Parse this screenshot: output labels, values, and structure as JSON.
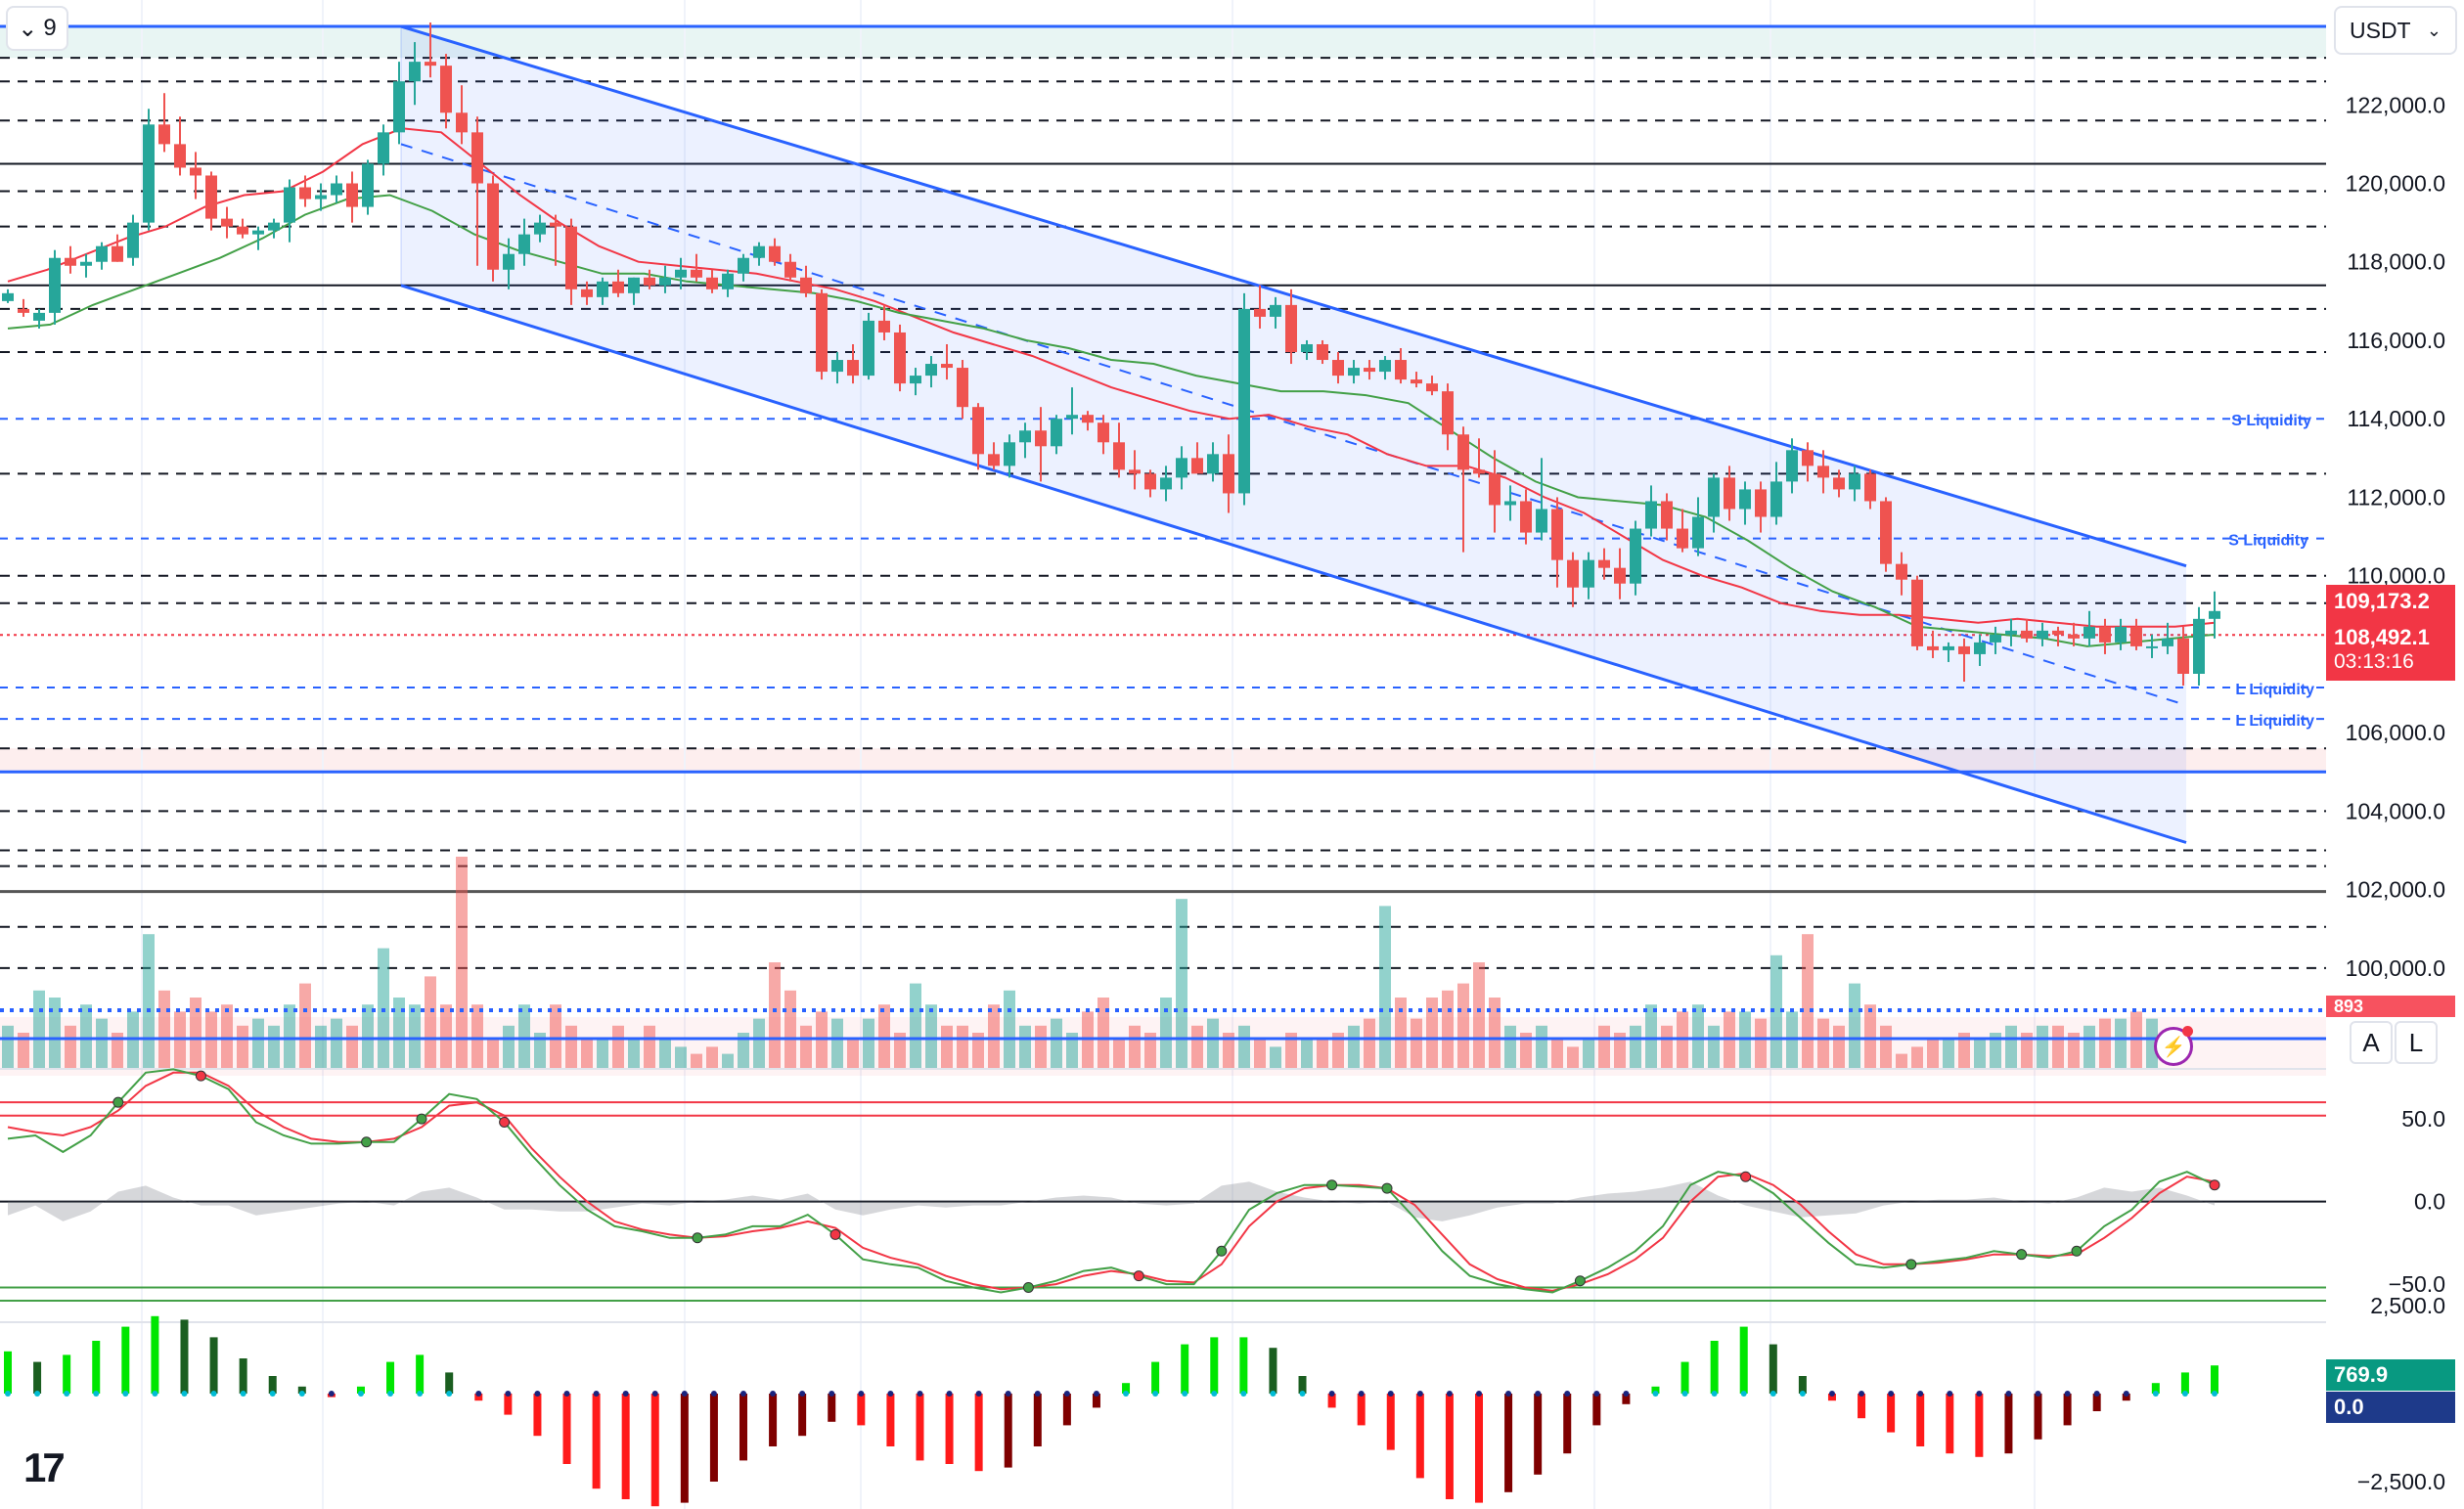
{
  "toolbar": {
    "interval_count": "9",
    "currency": "USDT"
  },
  "scale_buttons": {
    "auto": "A",
    "log": "L"
  },
  "logo": "17",
  "price_tags": {
    "last_price": "109,173.2",
    "current_price": "108,492.1",
    "countdown": "03:13:16",
    "volume": "893",
    "histogram_value": "769.9",
    "histogram_zero": "0.0"
  },
  "annotations": {
    "s_liquidity_1": "S Liquidity",
    "s_liquidity_2": "S Liquidity",
    "l_liquidity_1": "L Liquidity",
    "l_liquidity_2": "L Liquidity"
  },
  "colors": {
    "up": "#26a69a",
    "down": "#ef5350",
    "channel": "#2962ff",
    "ema_red": "#f23645",
    "ema_green": "#43a047"
  },
  "chart_data": {
    "type": "candlestick",
    "symbol_quote": "USDT",
    "price_axis": {
      "ticks": [
        "122,000.0",
        "120,000.0",
        "118,000.0",
        "116,000.0",
        "114,000.0",
        "112,000.0",
        "110,000.0",
        "106,000.0",
        "104,000.0",
        "102,000.0",
        "100,000.0"
      ],
      "range": [
        99000,
        124200
      ]
    },
    "stoch_axis": {
      "ticks": [
        "50.0",
        "0.0",
        "−50.0"
      ],
      "range": [
        -60,
        82
      ]
    },
    "macd_axis": {
      "ticks": [
        "2,500.0",
        "−2,500.0"
      ],
      "range": [
        -3000,
        3000
      ]
    },
    "horizontal_levels": {
      "solid_black": [
        120500,
        117400,
        101950
      ],
      "blue_solid": [
        124000,
        105000
      ],
      "s_liquidity": [
        114000,
        110950
      ],
      "l_liquidity": [
        107150,
        106350
      ],
      "dashed_black": [
        123200,
        122600,
        121600,
        119800,
        118900,
        116800,
        115700,
        112600,
        110000,
        109300,
        105600,
        104000,
        103000,
        102600,
        101050,
        100000
      ]
    },
    "channel": {
      "upper": [
        [
          0,
          124000
        ],
        [
          136,
          110250
        ]
      ],
      "lower": [
        [
          0,
          117400
        ],
        [
          136,
          103200
        ]
      ],
      "mid": [
        [
          0,
          121000
        ],
        [
          136,
          106700
        ]
      ]
    },
    "candles": [
      [
        117000,
        117300,
        116950,
        117200
      ],
      [
        116800,
        117050,
        116600,
        116700
      ],
      [
        116500,
        116800,
        116300,
        116700
      ],
      [
        116700,
        118300,
        116400,
        118100
      ],
      [
        118100,
        118400,
        117700,
        117900
      ],
      [
        117900,
        118200,
        117600,
        118000
      ],
      [
        118000,
        118500,
        117800,
        118400
      ],
      [
        118400,
        118700,
        118000,
        118000
      ],
      [
        118100,
        119200,
        117900,
        119000
      ],
      [
        119000,
        121900,
        118800,
        121500
      ],
      [
        121500,
        122300,
        120800,
        121000
      ],
      [
        121000,
        121700,
        120200,
        120400
      ],
      [
        120400,
        120800,
        119600,
        120200
      ],
      [
        120200,
        120300,
        118800,
        119100
      ],
      [
        119100,
        119400,
        118600,
        118900
      ],
      [
        118900,
        119100,
        118600,
        118700
      ],
      [
        118700,
        118900,
        118300,
        118800
      ],
      [
        118800,
        119100,
        118600,
        119000
      ],
      [
        119000,
        120100,
        118500,
        119900
      ],
      [
        119900,
        120200,
        119400,
        119600
      ],
      [
        119600,
        120000,
        119300,
        119700
      ],
      [
        119700,
        120200,
        119500,
        120000
      ],
      [
        120000,
        120300,
        119000,
        119400
      ],
      [
        119400,
        120600,
        119200,
        120500
      ],
      [
        120500,
        121500,
        120200,
        121300
      ],
      [
        121300,
        123100,
        121000,
        122600
      ],
      [
        122600,
        123600,
        122000,
        123100
      ],
      [
        123100,
        124100,
        122700,
        123000
      ],
      [
        123000,
        123300,
        121400,
        121800
      ],
      [
        121800,
        122500,
        121000,
        121300
      ],
      [
        121300,
        121700,
        117900,
        120000
      ],
      [
        120000,
        120200,
        117500,
        117800
      ],
      [
        117800,
        118600,
        117300,
        118200
      ],
      [
        118200,
        119100,
        117900,
        118700
      ],
      [
        118700,
        119200,
        118500,
        119000
      ],
      [
        119000,
        119200,
        117900,
        118900
      ],
      [
        118900,
        119100,
        116900,
        117300
      ],
      [
        117300,
        117500,
        116900,
        117100
      ],
      [
        117100,
        117600,
        116900,
        117500
      ],
      [
        117500,
        117800,
        117100,
        117200
      ],
      [
        117200,
        117600,
        116900,
        117600
      ],
      [
        117600,
        117800,
        117300,
        117400
      ],
      [
        117400,
        117900,
        117200,
        117600
      ],
      [
        117600,
        118100,
        117300,
        117800
      ],
      [
        117800,
        118200,
        117500,
        117600
      ],
      [
        117600,
        117800,
        117200,
        117300
      ],
      [
        117300,
        117800,
        117100,
        117700
      ],
      [
        117700,
        118200,
        117500,
        118100
      ],
      [
        118100,
        118500,
        117900,
        118400
      ],
      [
        118400,
        118600,
        117900,
        118000
      ],
      [
        118000,
        118200,
        117500,
        117600
      ],
      [
        117600,
        117900,
        117100,
        117200
      ],
      [
        117200,
        117300,
        115000,
        115200
      ],
      [
        115200,
        115700,
        114900,
        115500
      ],
      [
        115500,
        115900,
        114900,
        115100
      ],
      [
        115100,
        116700,
        115000,
        116500
      ],
      [
        116500,
        116900,
        116000,
        116200
      ],
      [
        116200,
        116400,
        114700,
        114900
      ],
      [
        114900,
        115300,
        114600,
        115100
      ],
      [
        115100,
        115600,
        114800,
        115400
      ],
      [
        115400,
        115900,
        115000,
        115300
      ],
      [
        115300,
        115500,
        114000,
        114300
      ],
      [
        114300,
        114400,
        112700,
        113100
      ],
      [
        113100,
        113400,
        112700,
        112800
      ],
      [
        112800,
        113600,
        112500,
        113400
      ],
      [
        113400,
        113900,
        113000,
        113700
      ],
      [
        113700,
        114300,
        112400,
        113300
      ],
      [
        113300,
        114100,
        113100,
        114000
      ],
      [
        114000,
        114800,
        113600,
        114100
      ],
      [
        114100,
        114200,
        113700,
        113900
      ],
      [
        113900,
        114100,
        113100,
        113400
      ],
      [
        113400,
        113900,
        112500,
        112700
      ],
      [
        112700,
        113200,
        112200,
        112600
      ],
      [
        112600,
        112700,
        112000,
        112200
      ],
      [
        112200,
        112800,
        111900,
        112500
      ],
      [
        112500,
        113300,
        112200,
        113000
      ],
      [
        113000,
        113400,
        112700,
        112600
      ],
      [
        112600,
        113400,
        112400,
        113100
      ],
      [
        113100,
        113600,
        111600,
        112100
      ],
      [
        112100,
        117200,
        111800,
        116800
      ],
      [
        116800,
        117400,
        116300,
        116600
      ],
      [
        116600,
        117100,
        116300,
        116900
      ],
      [
        116900,
        117300,
        115400,
        115700
      ],
      [
        115700,
        116000,
        115500,
        115900
      ],
      [
        115900,
        116000,
        115400,
        115500
      ],
      [
        115500,
        115700,
        114900,
        115100
      ],
      [
        115100,
        115500,
        114900,
        115300
      ],
      [
        115300,
        115500,
        115000,
        115200
      ],
      [
        115200,
        115600,
        115000,
        115500
      ],
      [
        115500,
        115800,
        114900,
        115000
      ],
      [
        115000,
        115200,
        114800,
        114900
      ],
      [
        114900,
        115100,
        114600,
        114700
      ],
      [
        114700,
        114900,
        113200,
        113600
      ],
      [
        113600,
        113800,
        110600,
        112700
      ],
      [
        112700,
        113500,
        112500,
        112600
      ],
      [
        112600,
        113200,
        111100,
        111800
      ],
      [
        111800,
        112300,
        111400,
        111900
      ],
      [
        111900,
        112200,
        110800,
        111100
      ],
      [
        111100,
        113000,
        110900,
        111700
      ],
      [
        111700,
        112000,
        109700,
        110400
      ],
      [
        110400,
        110600,
        109200,
        109700
      ],
      [
        109700,
        110600,
        109400,
        110400
      ],
      [
        110400,
        110700,
        109900,
        110200
      ],
      [
        110200,
        110700,
        109400,
        109800
      ],
      [
        109800,
        111400,
        109500,
        111200
      ],
      [
        111200,
        112300,
        111000,
        111900
      ],
      [
        111900,
        112100,
        110900,
        111200
      ],
      [
        111200,
        111700,
        110600,
        110700
      ],
      [
        110700,
        112000,
        110500,
        111500
      ],
      [
        111500,
        112600,
        111100,
        112500
      ],
      [
        112500,
        112800,
        111400,
        111700
      ],
      [
        111700,
        112400,
        111300,
        112200
      ],
      [
        112200,
        112400,
        111100,
        111500
      ],
      [
        111500,
        112900,
        111300,
        112400
      ],
      [
        112400,
        113500,
        112100,
        113200
      ],
      [
        113200,
        113400,
        112400,
        112800
      ],
      [
        112800,
        113200,
        112100,
        112500
      ],
      [
        112500,
        112700,
        112000,
        112200
      ],
      [
        112200,
        112800,
        111900,
        112600
      ],
      [
        112600,
        112700,
        111700,
        111900
      ],
      [
        111900,
        112000,
        110100,
        110300
      ],
      [
        110300,
        110600,
        109500,
        109900
      ],
      [
        109900,
        110000,
        108100,
        108200
      ],
      [
        108200,
        108600,
        107900,
        108100
      ],
      [
        108100,
        108300,
        107800,
        108200
      ],
      [
        108200,
        108400,
        107300,
        108000
      ],
      [
        108000,
        108500,
        107700,
        108300
      ],
      [
        108300,
        108700,
        108000,
        108500
      ],
      [
        108500,
        108900,
        108200,
        108600
      ],
      [
        108600,
        108900,
        108300,
        108400
      ],
      [
        108400,
        108800,
        108200,
        108600
      ],
      [
        108600,
        108700,
        108200,
        108500
      ],
      [
        108500,
        108800,
        108200,
        108400
      ],
      [
        108400,
        109100,
        108200,
        108700
      ],
      [
        108700,
        108900,
        108000,
        108300
      ],
      [
        108300,
        108900,
        108100,
        108700
      ],
      [
        108700,
        108900,
        108100,
        108200
      ],
      [
        108200,
        108500,
        107900,
        108200
      ],
      [
        108200,
        108800,
        108000,
        108400
      ],
      [
        108400,
        108700,
        107200,
        107500
      ],
      [
        107500,
        109200,
        107200,
        108900
      ],
      [
        108900,
        109600,
        108400,
        109100
      ]
    ],
    "extra_candles_note": "",
    "ema_red": [
      117500,
      117800,
      118200,
      118600,
      118900,
      119400,
      119700,
      119800,
      120300,
      121000,
      121400,
      121300,
      120500,
      119700,
      119000,
      118400,
      118000,
      117900,
      117800,
      117700,
      117500,
      117300,
      117000,
      116600,
      116200,
      115900,
      115600,
      115200,
      114800,
      114500,
      114200,
      114000,
      114100,
      113800,
      113600,
      113100,
      112800,
      112800,
      112500,
      112000,
      111600,
      111000,
      110400,
      110000,
      109700,
      109300,
      109100,
      109000,
      109000,
      108900,
      108800,
      108900,
      108800,
      108700,
      108700,
      108700,
      108800
    ],
    "ema_green": [
      116300,
      116400,
      116900,
      117300,
      117700,
      118100,
      118600,
      119200,
      119600,
      119700,
      119300,
      118700,
      118300,
      118000,
      117700,
      117700,
      117500,
      117400,
      117300,
      117200,
      117000,
      116700,
      116500,
      116300,
      116000,
      115800,
      115500,
      115400,
      115100,
      114900,
      114700,
      114700,
      114600,
      114400,
      113700,
      113000,
      112400,
      112000,
      111900,
      111800,
      111500,
      110900,
      110200,
      109600,
      109200,
      108700,
      108600,
      108500,
      108400,
      108200,
      108300,
      108400,
      108500
    ],
    "volume": [
      0.3,
      0.25,
      0.55,
      0.5,
      0.3,
      0.45,
      0.35,
      0.25,
      0.4,
      0.95,
      0.55,
      0.4,
      0.5,
      0.4,
      0.45,
      0.3,
      0.35,
      0.3,
      0.45,
      0.6,
      0.3,
      0.35,
      0.3,
      0.45,
      0.85,
      0.5,
      0.45,
      0.65,
      0.45,
      1.5,
      0.45,
      0.2,
      0.3,
      0.45,
      0.25,
      0.45,
      0.3,
      0.2,
      0.2,
      0.3,
      0.2,
      0.3,
      0.2,
      0.15,
      0.1,
      0.15,
      0.1,
      0.25,
      0.35,
      0.75,
      0.55,
      0.3,
      0.4,
      0.35,
      0.2,
      0.35,
      0.45,
      0.25,
      0.6,
      0.45,
      0.3,
      0.3,
      0.25,
      0.45,
      0.55,
      0.3,
      0.3,
      0.35,
      0.25,
      0.4,
      0.5,
      0.2,
      0.3,
      0.25,
      0.5,
      1.2,
      0.3,
      0.35,
      0.25,
      0.3,
      0.2,
      0.15,
      0.25,
      0.2,
      0.2,
      0.25,
      0.3,
      0.35,
      1.15,
      0.5,
      0.35,
      0.5,
      0.55,
      0.6,
      0.75,
      0.5,
      0.3,
      0.25,
      0.3,
      0.2,
      0.15,
      0.2,
      0.3,
      0.25,
      0.3,
      0.45,
      0.3,
      0.4,
      0.45,
      0.3,
      0.4,
      0.4,
      0.35,
      0.8,
      0.4,
      0.95,
      0.35,
      0.3,
      0.6,
      0.45,
      0.3,
      0.1,
      0.15,
      0.2,
      0.2,
      0.25,
      0.2,
      0.25,
      0.3,
      0.25,
      0.3,
      0.3,
      0.25,
      0.3,
      0.35,
      0.35,
      0.4,
      0.35
    ],
    "stoch_k": [
      38,
      40,
      30,
      40,
      60,
      78,
      80,
      76,
      68,
      48,
      40,
      35,
      35,
      36,
      36,
      50,
      65,
      62,
      48,
      28,
      10,
      -5,
      -15,
      -18,
      -22,
      -22,
      -20,
      -15,
      -15,
      -8,
      -20,
      -35,
      -38,
      -40,
      -48,
      -52,
      -55,
      -52,
      -48,
      -42,
      -40,
      -45,
      -50,
      -50,
      -30,
      -5,
      5,
      10,
      10,
      9,
      8,
      -10,
      -30,
      -45,
      -50,
      -53,
      -55,
      -48,
      -40,
      -30,
      -15,
      10,
      18,
      15,
      5,
      -10,
      -25,
      -38,
      -40,
      -38,
      -36,
      -34,
      -30,
      -32,
      -34,
      -30,
      -15,
      -5,
      12,
      18,
      10
    ],
    "stoch_d": [
      45,
      42,
      40,
      45,
      55,
      70,
      78,
      78,
      70,
      55,
      45,
      38,
      36,
      36,
      38,
      45,
      58,
      60,
      52,
      32,
      15,
      0,
      -12,
      -17,
      -20,
      -22,
      -21,
      -18,
      -16,
      -12,
      -16,
      -28,
      -34,
      -38,
      -45,
      -50,
      -53,
      -52,
      -50,
      -45,
      -42,
      -44,
      -48,
      -49,
      -38,
      -15,
      0,
      8,
      10,
      10,
      8,
      -2,
      -20,
      -38,
      -47,
      -52,
      -54,
      -50,
      -44,
      -35,
      -22,
      0,
      15,
      17,
      10,
      -2,
      -18,
      -32,
      -38,
      -38,
      -37,
      -35,
      -32,
      -32,
      -33,
      -32,
      -22,
      -10,
      5,
      15,
      12
    ],
    "macd_hist": [
      1200,
      900,
      1100,
      1500,
      1900,
      2200,
      2100,
      1600,
      1000,
      500,
      200,
      -100,
      200,
      900,
      1100,
      600,
      -200,
      -600,
      -1200,
      -2000,
      -2700,
      -3000,
      -3200,
      -3100,
      -2500,
      -1900,
      -1500,
      -1200,
      -800,
      -900,
      -1500,
      -1900,
      -2000,
      -2200,
      -2100,
      -1500,
      -900,
      -400,
      300,
      900,
      1400,
      1600,
      1600,
      1300,
      500,
      -400,
      -900,
      -1600,
      -2400,
      -3000,
      -3100,
      -2800,
      -2300,
      -1700,
      -900,
      -300,
      200,
      900,
      1500,
      1900,
      1400,
      500,
      -200,
      -700,
      -1100,
      -1500,
      -1700,
      -1800,
      -1700,
      -1300,
      -900,
      -500,
      -200,
      300,
      600,
      800
    ]
  }
}
